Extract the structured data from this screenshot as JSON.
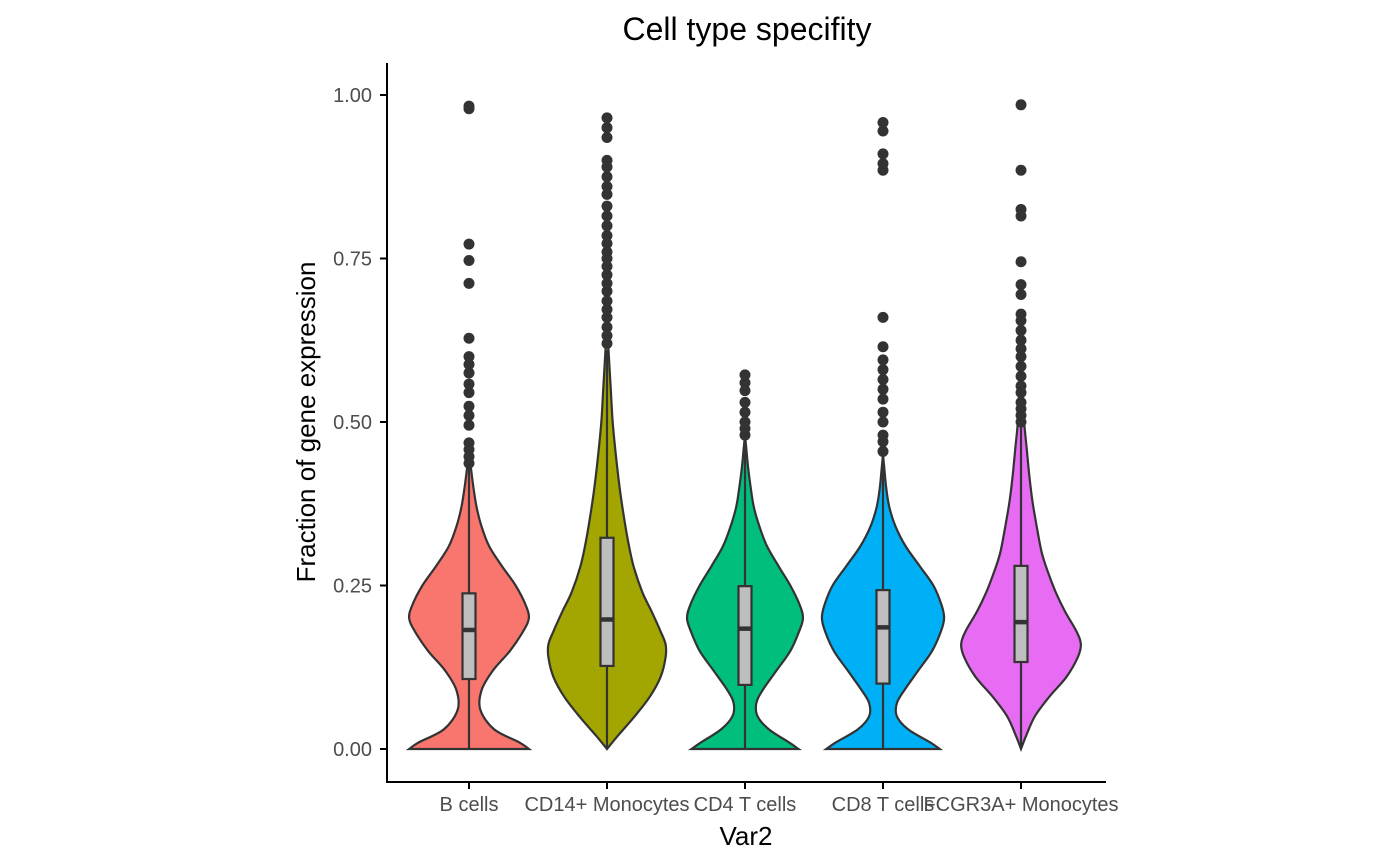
{
  "chart_data": {
    "type": "violin",
    "title": "Cell type specifity",
    "xlabel": "Var2",
    "ylabel": "Fraction of gene expression",
    "ylim": [
      -0.05,
      1.05
    ],
    "yticks": [
      0.0,
      0.25,
      0.5,
      0.75,
      1.0
    ],
    "ytick_labels": [
      "0.00",
      "0.25",
      "0.50",
      "0.75",
      "1.00"
    ],
    "grid": false,
    "legend": "none",
    "categories": [
      "B cells",
      "CD14+ Monocytes",
      "CD4 T cells",
      "CD8 T cells",
      "FCGR3A+ Monocytes"
    ],
    "series": [
      {
        "category": "B cells",
        "color": "#F8766D",
        "box": {
          "q1": 0.107,
          "median": 0.182,
          "q3": 0.238,
          "whisker_low": 0.0,
          "whisker_high": 0.435
        },
        "density": [
          [
            0.0,
            0.95
          ],
          [
            0.01,
            0.8
          ],
          [
            0.03,
            0.4
          ],
          [
            0.06,
            0.18
          ],
          [
            0.09,
            0.2
          ],
          [
            0.12,
            0.38
          ],
          [
            0.15,
            0.65
          ],
          [
            0.18,
            0.86
          ],
          [
            0.2,
            0.95
          ],
          [
            0.22,
            0.9
          ],
          [
            0.25,
            0.74
          ],
          [
            0.28,
            0.52
          ],
          [
            0.31,
            0.32
          ],
          [
            0.34,
            0.2
          ],
          [
            0.37,
            0.12
          ],
          [
            0.4,
            0.07
          ],
          [
            0.43,
            0.03
          ],
          [
            0.45,
            0.0
          ]
        ],
        "outliers": [
          0.437,
          0.447,
          0.458,
          0.468,
          0.495,
          0.51,
          0.524,
          0.545,
          0.558,
          0.575,
          0.588,
          0.6,
          0.628,
          0.712,
          0.747,
          0.772,
          0.979,
          0.983
        ]
      },
      {
        "category": "CD14+ Monocytes",
        "color": "#A3A500",
        "box": {
          "q1": 0.127,
          "median": 0.198,
          "q3": 0.323,
          "whisker_low": 0.0,
          "whisker_high": 0.61
        },
        "density": [
          [
            0.0,
            0.0
          ],
          [
            0.02,
            0.17
          ],
          [
            0.05,
            0.44
          ],
          [
            0.08,
            0.68
          ],
          [
            0.11,
            0.85
          ],
          [
            0.14,
            0.93
          ],
          [
            0.16,
            0.93
          ],
          [
            0.18,
            0.85
          ],
          [
            0.21,
            0.71
          ],
          [
            0.24,
            0.56
          ],
          [
            0.28,
            0.42
          ],
          [
            0.32,
            0.33
          ],
          [
            0.36,
            0.26
          ],
          [
            0.4,
            0.2
          ],
          [
            0.45,
            0.14
          ],
          [
            0.5,
            0.09
          ],
          [
            0.55,
            0.06
          ],
          [
            0.6,
            0.03
          ],
          [
            0.65,
            0.0
          ]
        ],
        "outliers": [
          0.62,
          0.632,
          0.645,
          0.66,
          0.672,
          0.685,
          0.7,
          0.712,
          0.725,
          0.738,
          0.75,
          0.76,
          0.773,
          0.785,
          0.8,
          0.815,
          0.83,
          0.848,
          0.86,
          0.875,
          0.89,
          0.9,
          0.935,
          0.95,
          0.965
        ]
      },
      {
        "category": "CD4 T cells",
        "color": "#00BF7D",
        "box": {
          "q1": 0.098,
          "median": 0.184,
          "q3": 0.249,
          "whisker_low": 0.0,
          "whisker_high": 0.478
        },
        "density": [
          [
            0.0,
            0.85
          ],
          [
            0.01,
            0.7
          ],
          [
            0.03,
            0.38
          ],
          [
            0.05,
            0.2
          ],
          [
            0.07,
            0.18
          ],
          [
            0.09,
            0.28
          ],
          [
            0.12,
            0.5
          ],
          [
            0.15,
            0.72
          ],
          [
            0.18,
            0.86
          ],
          [
            0.2,
            0.92
          ],
          [
            0.22,
            0.87
          ],
          [
            0.25,
            0.72
          ],
          [
            0.28,
            0.53
          ],
          [
            0.31,
            0.35
          ],
          [
            0.34,
            0.23
          ],
          [
            0.37,
            0.14
          ],
          [
            0.4,
            0.09
          ],
          [
            0.43,
            0.05
          ],
          [
            0.46,
            0.02
          ],
          [
            0.48,
            0.0
          ]
        ],
        "outliers": [
          0.48,
          0.49,
          0.5,
          0.515,
          0.53,
          0.548,
          0.56,
          0.572
        ]
      },
      {
        "category": "CD8 T cells",
        "color": "#00B0F6",
        "box": {
          "q1": 0.1,
          "median": 0.186,
          "q3": 0.243,
          "whisker_low": 0.0,
          "whisker_high": 0.47
        },
        "density": [
          [
            0.0,
            0.9
          ],
          [
            0.01,
            0.75
          ],
          [
            0.03,
            0.4
          ],
          [
            0.05,
            0.22
          ],
          [
            0.07,
            0.22
          ],
          [
            0.09,
            0.34
          ],
          [
            0.12,
            0.56
          ],
          [
            0.15,
            0.78
          ],
          [
            0.18,
            0.92
          ],
          [
            0.2,
            0.97
          ],
          [
            0.22,
            0.93
          ],
          [
            0.25,
            0.8
          ],
          [
            0.28,
            0.58
          ],
          [
            0.31,
            0.36
          ],
          [
            0.34,
            0.2
          ],
          [
            0.37,
            0.1
          ],
          [
            0.4,
            0.05
          ],
          [
            0.43,
            0.02
          ],
          [
            0.45,
            0.0
          ]
        ],
        "outliers": [
          0.455,
          0.47,
          0.48,
          0.5,
          0.515,
          0.535,
          0.55,
          0.565,
          0.58,
          0.595,
          0.615,
          0.66,
          0.885,
          0.895,
          0.91,
          0.945,
          0.958
        ]
      },
      {
        "category": "FCGR3A+ Monocytes",
        "color": "#E76BF3",
        "box": {
          "q1": 0.133,
          "median": 0.194,
          "q3": 0.28,
          "whisker_low": 0.0,
          "whisker_high": 0.495
        },
        "density": [
          [
            0.0,
            0.0
          ],
          [
            0.02,
            0.08
          ],
          [
            0.05,
            0.22
          ],
          [
            0.08,
            0.45
          ],
          [
            0.11,
            0.72
          ],
          [
            0.14,
            0.9
          ],
          [
            0.16,
            0.95
          ],
          [
            0.18,
            0.88
          ],
          [
            0.21,
            0.7
          ],
          [
            0.24,
            0.55
          ],
          [
            0.27,
            0.43
          ],
          [
            0.3,
            0.33
          ],
          [
            0.34,
            0.25
          ],
          [
            0.38,
            0.18
          ],
          [
            0.42,
            0.13
          ],
          [
            0.46,
            0.09
          ],
          [
            0.5,
            0.05
          ],
          [
            0.55,
            0.02
          ],
          [
            0.6,
            0.0
          ]
        ],
        "outliers": [
          0.5,
          0.51,
          0.52,
          0.53,
          0.545,
          0.555,
          0.57,
          0.585,
          0.6,
          0.612,
          0.625,
          0.64,
          0.655,
          0.665,
          0.695,
          0.71,
          0.745,
          0.815,
          0.825,
          0.885,
          0.985
        ]
      }
    ],
    "styles": {
      "outline_color": "#333333",
      "box_fill": "#BEBEBE",
      "axis_color": "#000000"
    }
  }
}
